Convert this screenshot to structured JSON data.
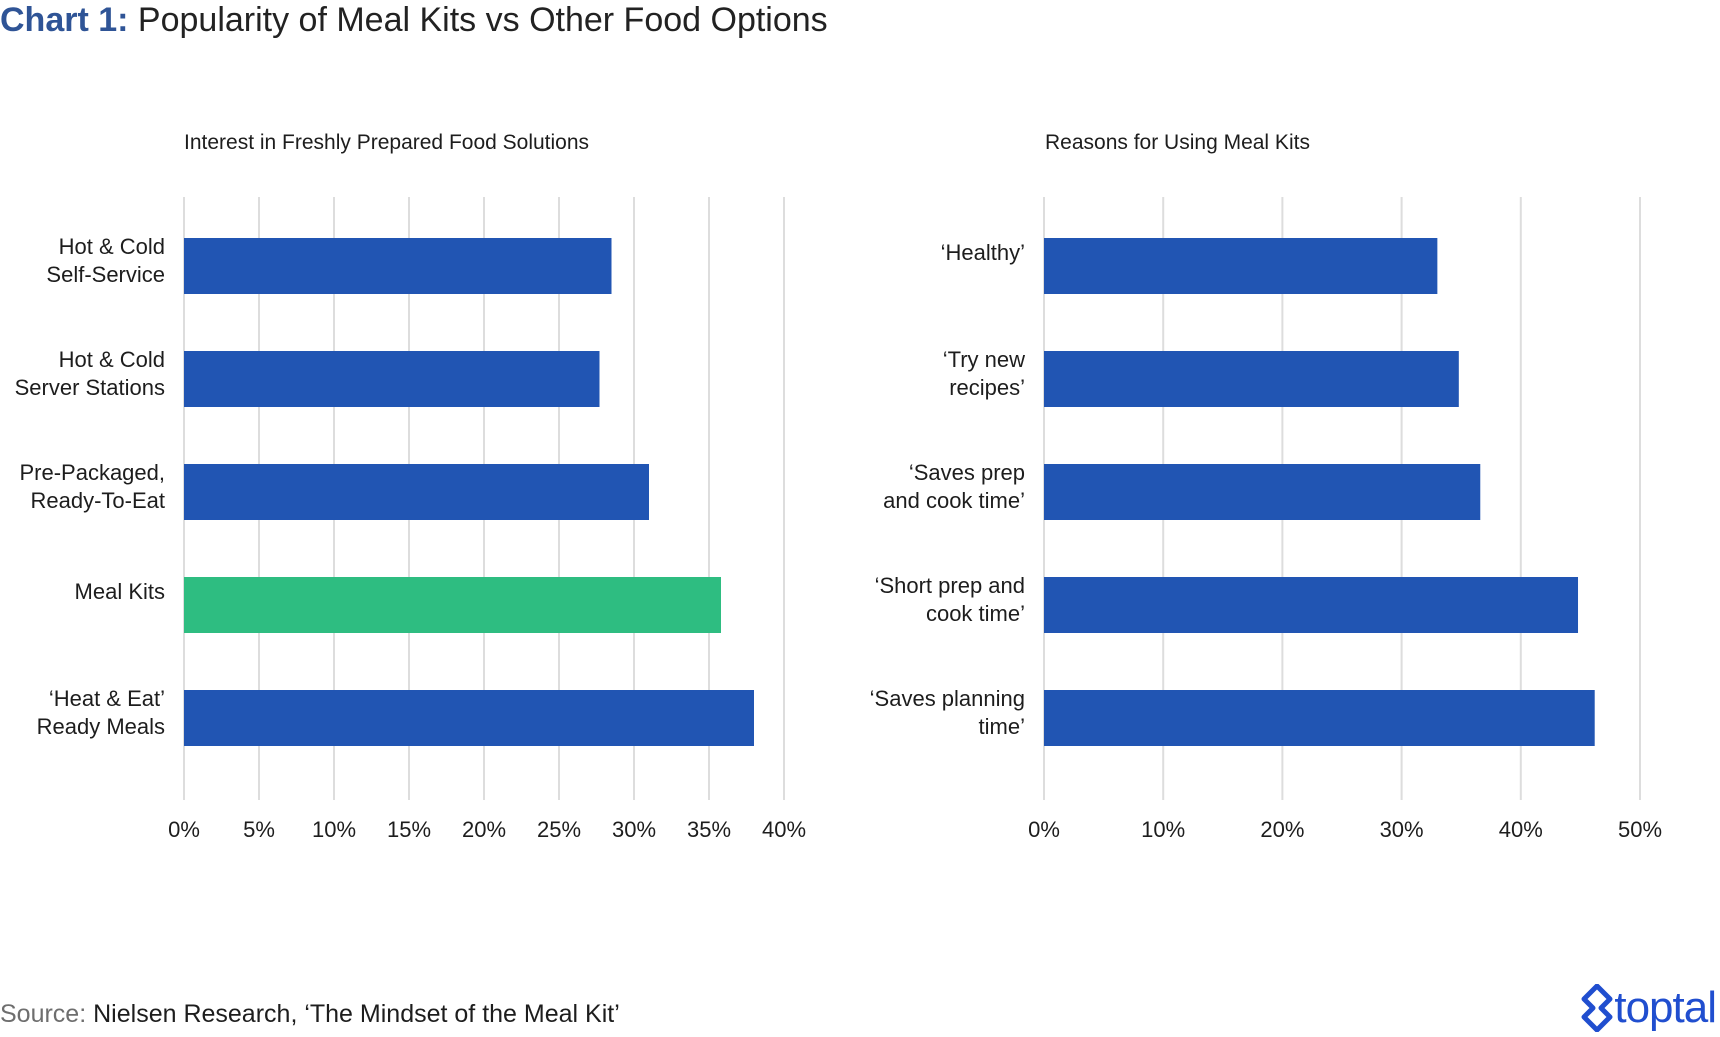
{
  "title_prefix": "Chart 1:",
  "title": "Popularity of Meal Kits vs Other Food Options",
  "source_label": "Source:",
  "source_text": "Nielsen Research, ‘The Mindset of the Meal Kit’",
  "brand": "toptal",
  "colors": {
    "bar": "#2155b3",
    "highlight": "#2ebd81",
    "grid": "#dddddd",
    "title_accent": "#2f5496"
  },
  "chart_data": [
    {
      "type": "bar",
      "orientation": "horizontal",
      "title": "Interest in Freshly Prepared Food Solutions",
      "categories": [
        [
          "Hot & Cold",
          "Self-Service"
        ],
        [
          "Hot & Cold",
          "Server Stations"
        ],
        [
          "Pre-Packaged,",
          "Ready-To-Eat"
        ],
        [
          "Meal Kits"
        ],
        [
          "‘Heat & Eat’",
          "Ready Meals"
        ]
      ],
      "values": [
        28.5,
        27.7,
        31,
        35.8,
        38
      ],
      "highlight_index": 3,
      "xlim": [
        0,
        40
      ],
      "xticks": [
        0,
        5,
        10,
        15,
        20,
        25,
        30,
        35,
        40
      ],
      "tick_labels": [
        "0%",
        "5%",
        "10%",
        "15%",
        "20%",
        "25%",
        "30%",
        "35%",
        "40%"
      ],
      "grid": true
    },
    {
      "type": "bar",
      "orientation": "horizontal",
      "title": "Reasons for Using Meal Kits",
      "categories": [
        [
          "‘Healthy’"
        ],
        [
          "‘Try new",
          "recipes’"
        ],
        [
          "‘Saves prep",
          "and cook time’"
        ],
        [
          "‘Short prep and",
          "cook time’"
        ],
        [
          "‘Saves planning",
          "time’"
        ]
      ],
      "values": [
        33,
        34.8,
        36.6,
        44.8,
        46.2
      ],
      "highlight_index": -1,
      "xlim": [
        0,
        50
      ],
      "xticks": [
        0,
        10,
        20,
        30,
        40,
        50
      ],
      "tick_labels": [
        "0%",
        "10%",
        "20%",
        "30%",
        "40%",
        "50%"
      ],
      "grid": true
    }
  ]
}
